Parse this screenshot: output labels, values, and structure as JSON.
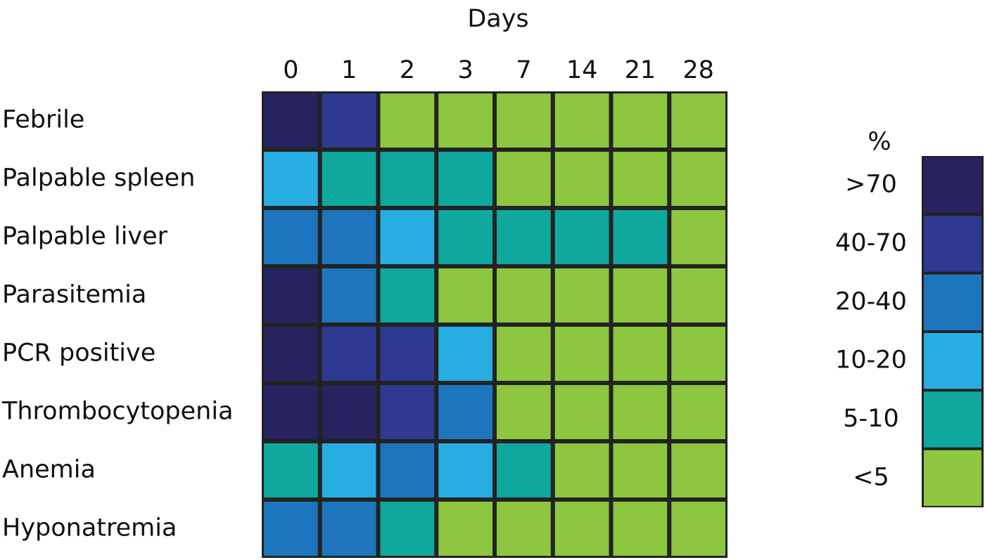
{
  "chart_data": {
    "type": "heatmap",
    "x_label": "Days",
    "categories": [
      0,
      1,
      2,
      3,
      7,
      14,
      21,
      28
    ],
    "rows": [
      "Febrile",
      "Palpable spleen",
      "Palpable liver",
      "Parasitemia",
      "PCR positive",
      "Thrombocytopenia",
      "Anemia",
      "Hyponatremia"
    ],
    "legend_title": "%",
    "levels": [
      {
        "label": ">70",
        "color": "#27235e"
      },
      {
        "label": "40-70",
        "color": "#2e3992"
      },
      {
        "label": "20-40",
        "color": "#1d76bd"
      },
      {
        "label": "10-20",
        "color": "#28ade3"
      },
      {
        "label": "5-10",
        "color": "#0fa89e"
      },
      {
        "label": "<5",
        "color": "#8dc63f"
      }
    ],
    "matrix": [
      [
        ">70",
        "40-70",
        "<5",
        "<5",
        "<5",
        "<5",
        "<5",
        "<5"
      ],
      [
        "10-20",
        "5-10",
        "5-10",
        "5-10",
        "<5",
        "<5",
        "<5",
        "<5"
      ],
      [
        "20-40",
        "20-40",
        "10-20",
        "5-10",
        "5-10",
        "5-10",
        "5-10",
        "<5"
      ],
      [
        ">70",
        "20-40",
        "5-10",
        "<5",
        "<5",
        "<5",
        "<5",
        "<5"
      ],
      [
        ">70",
        "40-70",
        "40-70",
        "10-20",
        "<5",
        "<5",
        "<5",
        "<5"
      ],
      [
        ">70",
        ">70",
        "40-70",
        "20-40",
        "<5",
        "<5",
        "<5",
        "<5"
      ],
      [
        "5-10",
        "10-20",
        "20-40",
        "10-20",
        "5-10",
        "<5",
        "<5",
        "<5"
      ],
      [
        "20-40",
        "20-40",
        "5-10",
        "<5",
        "<5",
        "<5",
        "<5",
        "<5"
      ]
    ]
  }
}
